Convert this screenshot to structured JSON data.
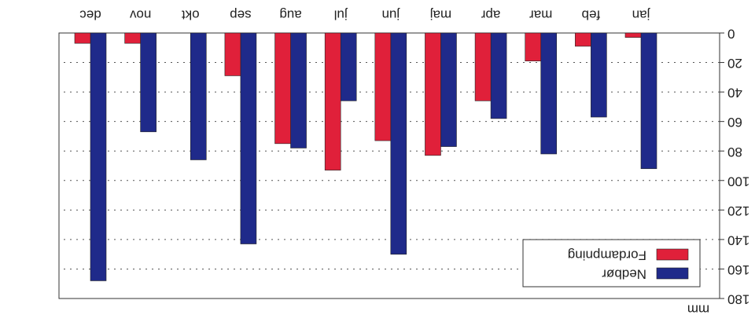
{
  "chart_data": {
    "type": "bar",
    "y_label": "mm",
    "categories": [
      "jan",
      "feb",
      "mar",
      "apr",
      "maj",
      "jun",
      "jul",
      "aug",
      "sep",
      "okt",
      "nov",
      "dec"
    ],
    "series": [
      {
        "name": "Nedbør",
        "color": "#1f2a8a",
        "values": [
          92,
          57,
          82,
          58,
          77,
          150,
          46,
          78,
          143,
          86,
          67,
          168
        ]
      },
      {
        "name": "Fordampning",
        "color": "#e0203a",
        "values": [
          3,
          9,
          19,
          46,
          83,
          73,
          93,
          75,
          29,
          0,
          7,
          7
        ]
      }
    ],
    "ylim": [
      0,
      180
    ],
    "yticks": [
      0,
      20,
      40,
      60,
      80,
      100,
      120,
      140,
      160,
      180
    ],
    "grid": true,
    "legend": "upper-left"
  }
}
